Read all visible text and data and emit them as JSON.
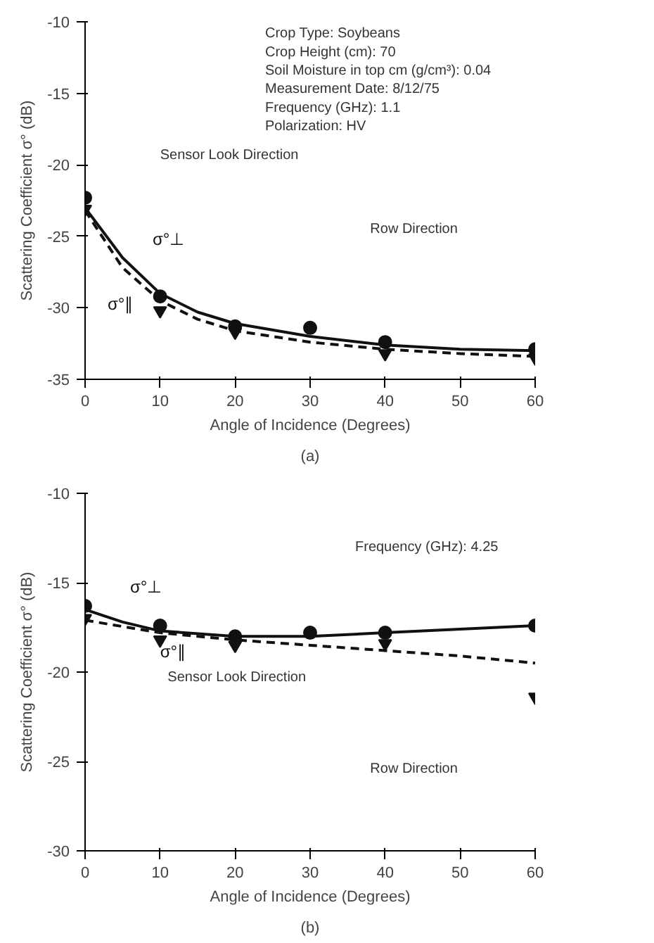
{
  "chart_data": [
    {
      "type": "scatter",
      "subtitle": "(a)",
      "xlabel": "Angle of Incidence (Degrees)",
      "ylabel": "Scattering Coefficient σ° (dB)",
      "x": [
        0,
        10,
        20,
        30,
        40,
        60
      ],
      "xlim": [
        0,
        60
      ],
      "ylim": [
        -35,
        -10
      ],
      "xticks": [
        0,
        10,
        20,
        30,
        40,
        50,
        60
      ],
      "yticks": [
        -35,
        -30,
        -25,
        -20,
        -15,
        -10
      ],
      "grid": false,
      "legend": false,
      "annotations": [
        "Crop Type: Soybeans",
        "Crop Height (cm): 70",
        "Soil Moisture in top cm (g/cm³): 0.04",
        "Measurement Date: 8/12/75",
        "Frequency (GHz): 1.1",
        "Polarization: HV",
        "Sensor Look Direction",
        "Row Direction"
      ],
      "series": [
        {
          "marker": "circle",
          "color": "#111111",
          "values": [
            -22.3,
            -29.2,
            -31.3,
            -31.4,
            -32.4,
            -32.9
          ]
        },
        {
          "marker": "triangle",
          "color": "#111111",
          "values": [
            -23.1,
            -30.2,
            -31.7,
            null,
            -33.2,
            -33.5
          ]
        },
        {
          "type": "line",
          "name": "σ°⊥",
          "line_style": "solid",
          "color": "#111111",
          "x": [
            0,
            5,
            10,
            15,
            20,
            30,
            40,
            50,
            60
          ],
          "values": [
            -23.0,
            -26.5,
            -29.0,
            -30.3,
            -31.1,
            -32.0,
            -32.6,
            -32.9,
            -33.0
          ]
        },
        {
          "type": "line",
          "name": "σ°∥",
          "line_style": "dashed",
          "color": "#111111",
          "x": [
            0,
            5,
            10,
            15,
            20,
            30,
            40,
            50,
            60
          ],
          "values": [
            -23.2,
            -27.2,
            -29.5,
            -30.8,
            -31.6,
            -32.4,
            -32.9,
            -33.2,
            -33.4
          ]
        }
      ]
    },
    {
      "type": "scatter",
      "subtitle": "(b)",
      "xlabel": "Angle of Incidence (Degrees)",
      "ylabel": "Scattering Coefficient σ° (dB)",
      "x": [
        0,
        10,
        20,
        30,
        40,
        60
      ],
      "xlim": [
        0,
        60
      ],
      "ylim": [
        -30,
        -10
      ],
      "xticks": [
        0,
        10,
        20,
        30,
        40,
        50,
        60
      ],
      "yticks": [
        -30,
        -25,
        -20,
        -15,
        -10
      ],
      "grid": false,
      "legend": false,
      "annotations": [
        "Frequency (GHz): 4.25",
        "Sensor Look Direction",
        "Row Direction"
      ],
      "series": [
        {
          "marker": "circle",
          "color": "#111111",
          "values": [
            -16.3,
            -17.4,
            -18.0,
            -17.8,
            -17.8,
            -17.4
          ]
        },
        {
          "marker": "triangle",
          "color": "#111111",
          "values": [
            -17.0,
            -18.2,
            -18.5,
            null,
            -18.4,
            -21.4
          ]
        },
        {
          "type": "line",
          "name": "σ°⊥",
          "line_style": "solid",
          "color": "#111111",
          "x": [
            0,
            5,
            10,
            20,
            30,
            40,
            50,
            60
          ],
          "values": [
            -16.5,
            -17.2,
            -17.7,
            -18.0,
            -18.0,
            -17.8,
            -17.6,
            -17.4
          ]
        },
        {
          "type": "line",
          "name": "σ°∥",
          "line_style": "dashed",
          "color": "#111111",
          "x": [
            0,
            10,
            20,
            30,
            40,
            50,
            60
          ],
          "values": [
            -17.1,
            -17.8,
            -18.2,
            -18.5,
            -18.8,
            -19.1,
            -19.5
          ]
        }
      ]
    }
  ]
}
